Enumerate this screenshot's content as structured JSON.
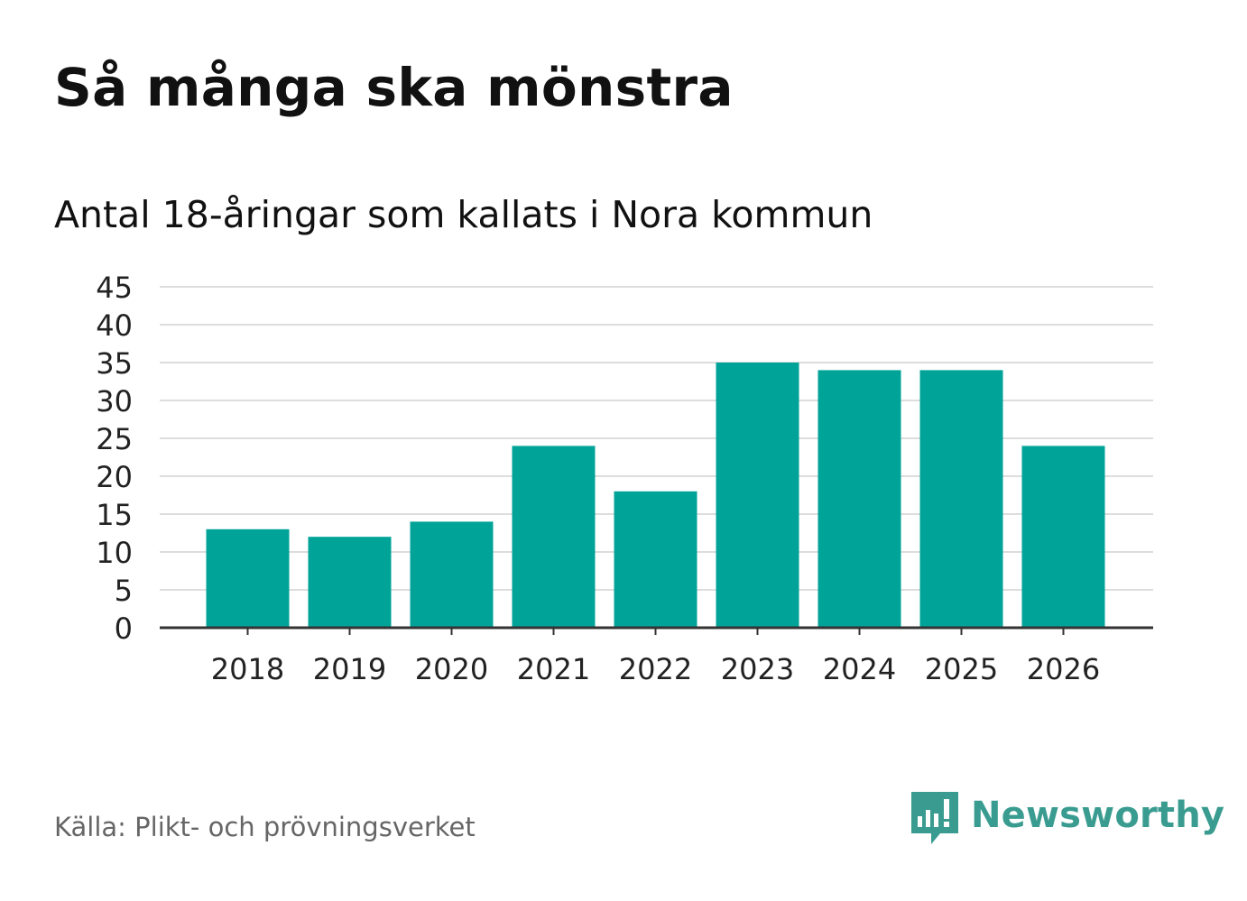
{
  "header": {
    "title": "Så många ska mönstra",
    "subtitle": "Antal 18-åringar som kallats i Nora kommun"
  },
  "footer": {
    "source": "Källa: Plikt- och prövningsverket",
    "brand": "Newsworthy"
  },
  "colors": {
    "bar": "#00a398",
    "grid": "#dddddd",
    "axis": "#333333",
    "brand": "#3a9c90"
  },
  "chart_data": {
    "type": "bar",
    "title": "Så många ska mönstra",
    "subtitle": "Antal 18-åringar som kallats i Nora kommun",
    "xlabel": "",
    "ylabel": "",
    "categories": [
      "2018",
      "2019",
      "2020",
      "2021",
      "2022",
      "2023",
      "2024",
      "2025",
      "2026"
    ],
    "values": [
      13,
      12,
      14,
      24,
      18,
      35,
      34,
      34,
      24
    ],
    "ylim": [
      0,
      45
    ],
    "yticks": [
      0,
      5,
      10,
      15,
      20,
      25,
      30,
      35,
      40,
      45
    ],
    "grid": true,
    "legend": "none"
  }
}
